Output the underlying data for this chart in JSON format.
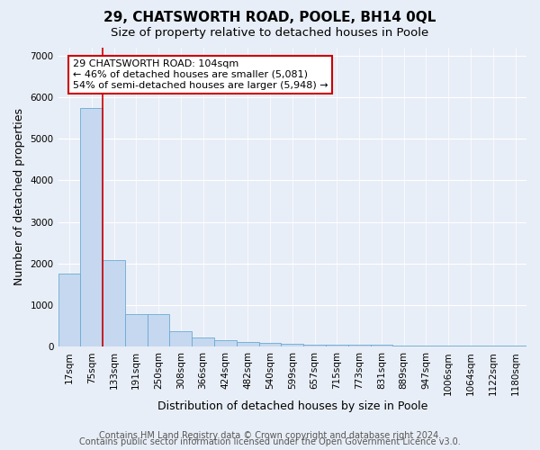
{
  "title": "29, CHATSWORTH ROAD, POOLE, BH14 0QL",
  "subtitle": "Size of property relative to detached houses in Poole",
  "xlabel": "Distribution of detached houses by size in Poole",
  "ylabel": "Number of detached properties",
  "categories": [
    "17sqm",
    "75sqm",
    "133sqm",
    "191sqm",
    "250sqm",
    "308sqm",
    "366sqm",
    "424sqm",
    "482sqm",
    "540sqm",
    "599sqm",
    "657sqm",
    "715sqm",
    "773sqm",
    "831sqm",
    "889sqm",
    "947sqm",
    "1006sqm",
    "1064sqm",
    "1122sqm",
    "1180sqm"
  ],
  "values": [
    1750,
    5750,
    2080,
    790,
    790,
    370,
    220,
    150,
    110,
    85,
    75,
    60,
    55,
    45,
    40,
    35,
    30,
    28,
    25,
    22,
    20
  ],
  "bar_color": "#c5d8ef",
  "bar_edge_color": "#6aaad4",
  "annotation_box_text": "29 CHATSWORTH ROAD: 104sqm\n← 46% of detached houses are smaller (5,081)\n54% of semi-detached houses are larger (5,948) →",
  "ylim": [
    0,
    7200
  ],
  "yticks": [
    0,
    1000,
    2000,
    3000,
    4000,
    5000,
    6000,
    7000
  ],
  "red_line_color": "#cc0000",
  "box_edge_color": "#cc0000",
  "footer1": "Contains HM Land Registry data © Crown copyright and database right 2024.",
  "footer2": "Contains public sector information licensed under the Open Government Licence v3.0.",
  "bg_color": "#e8eef7",
  "title_fontsize": 11,
  "subtitle_fontsize": 9.5,
  "axis_label_fontsize": 9,
  "tick_fontsize": 7.5,
  "footer_fontsize": 7
}
